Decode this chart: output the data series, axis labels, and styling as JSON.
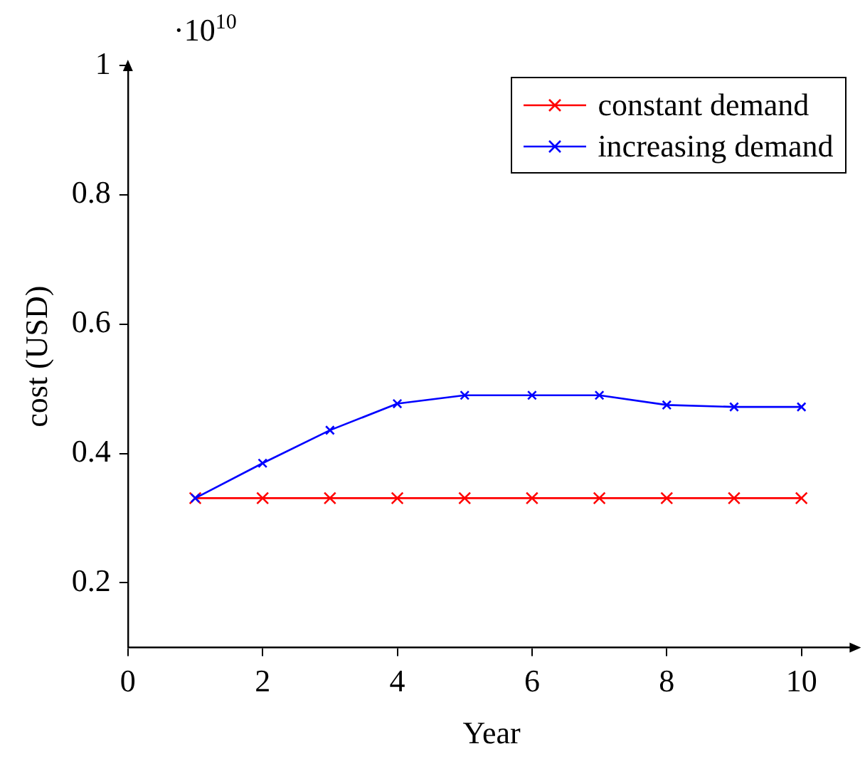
{
  "chart_data": {
    "type": "line",
    "xlabel": "Year",
    "ylabel": "cost (USD)",
    "annotations": [
      "·10$^{10}$"
    ],
    "x": [
      1,
      2,
      3,
      4,
      5,
      6,
      7,
      8,
      9,
      10
    ],
    "series": [
      {
        "name": "constant demand",
        "color": "#ff0000",
        "values": [
          0.331,
          0.331,
          0.331,
          0.331,
          0.331,
          0.331,
          0.331,
          0.331,
          0.331,
          0.331
        ]
      },
      {
        "name": "increasing demand",
        "color": "#0000ff",
        "values": [
          0.331,
          0.385,
          0.436,
          0.477,
          0.49,
          0.49,
          0.49,
          0.475,
          0.472,
          0.472
        ]
      }
    ],
    "xlim": [
      0,
      10.8
    ],
    "xticks": [
      0,
      2,
      4,
      6,
      8,
      10
    ],
    "ylim": [
      0.1,
      1
    ],
    "yticks": [
      0.2,
      0.4,
      0.6,
      0.8,
      1
    ],
    "grid": false,
    "legend": "top right",
    "marker": "cross",
    "line_style": "solid"
  }
}
